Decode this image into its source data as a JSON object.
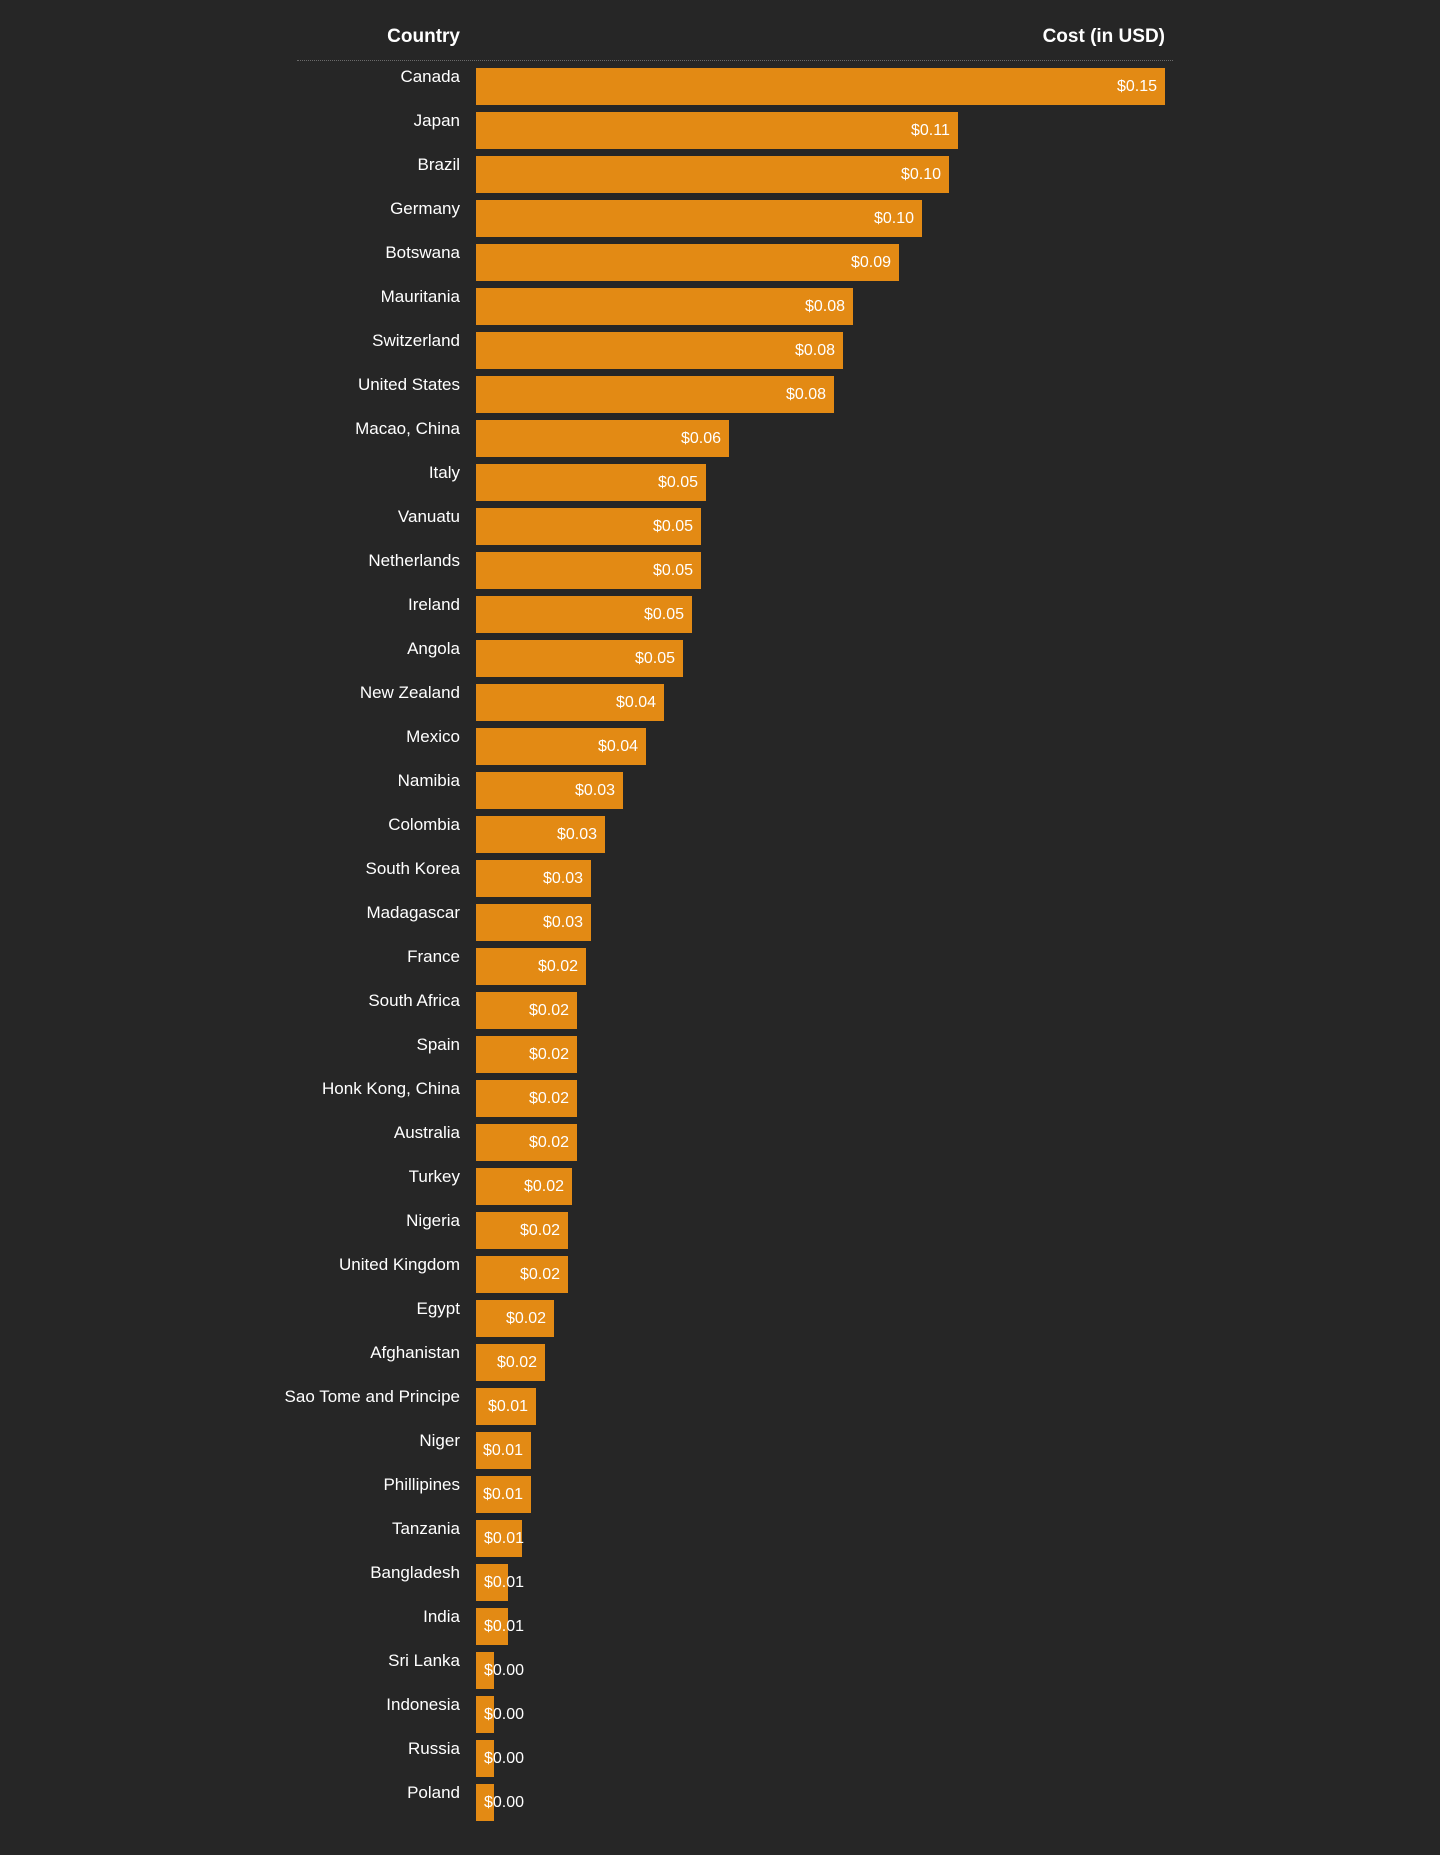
{
  "chart_data": {
    "type": "bar",
    "orientation": "horizontal",
    "header": {
      "category_label": "Country",
      "value_label": "Cost (in USD)"
    },
    "categories": [
      "Canada",
      "Japan",
      "Brazil",
      "Germany",
      "Botswana",
      "Mauritania",
      "Switzerland",
      "United States",
      "Macao, China",
      "Italy",
      "Vanuatu",
      "Netherlands",
      "Ireland",
      "Angola",
      "New Zealand",
      "Mexico",
      "Namibia",
      "Colombia",
      "South Korea",
      "Madagascar",
      "France",
      "South Africa",
      "Spain",
      "Honk Kong, China",
      "Australia",
      "Turkey",
      "Nigeria",
      "United Kingdom",
      "Egypt",
      "Afghanistan",
      "Sao Tome and Principe",
      "Niger",
      "Phillipines",
      "Tanzania",
      "Bangladesh",
      "India",
      "Sri Lanka",
      "Indonesia",
      "Russia",
      "Poland"
    ],
    "values": [
      0.15,
      0.105,
      0.103,
      0.097,
      0.092,
      0.082,
      0.08,
      0.078,
      0.055,
      0.05,
      0.049,
      0.049,
      0.047,
      0.045,
      0.041,
      0.037,
      0.032,
      0.028,
      0.025,
      0.025,
      0.024,
      0.022,
      0.022,
      0.022,
      0.022,
      0.021,
      0.02,
      0.02,
      0.017,
      0.015,
      0.013,
      0.012,
      0.012,
      0.01,
      0.007,
      0.007,
      0.004,
      0.004,
      0.004,
      0.004
    ],
    "value_labels": [
      "$0.15",
      "$0.11",
      "$0.10",
      "$0.10",
      "$0.09",
      "$0.08",
      "$0.08",
      "$0.08",
      "$0.06",
      "$0.05",
      "$0.05",
      "$0.05",
      "$0.05",
      "$0.05",
      "$0.04",
      "$0.04",
      "$0.03",
      "$0.03",
      "$0.03",
      "$0.03",
      "$0.02",
      "$0.02",
      "$0.02",
      "$0.02",
      "$0.02",
      "$0.02",
      "$0.02",
      "$0.02",
      "$0.02",
      "$0.02",
      "$0.01",
      "$0.01",
      "$0.01",
      "$0.01",
      "$0.01",
      "$0.01",
      "$0.00",
      "$0.00",
      "$0.00",
      "$0.00"
    ],
    "xlim": [
      0,
      0.15
    ],
    "grid": false,
    "legend": "none",
    "bar_color": "#e38a14",
    "background_color": "#262626",
    "text_color": "#ffffff"
  }
}
